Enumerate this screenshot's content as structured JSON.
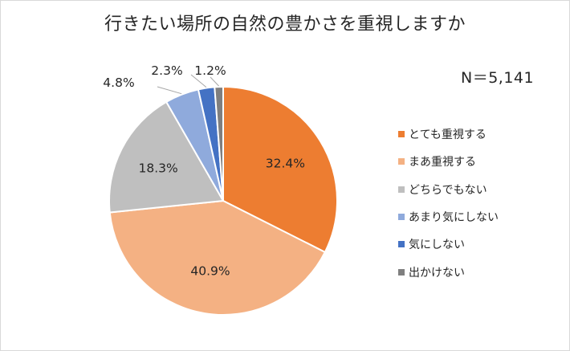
{
  "chart_data": {
    "type": "pie",
    "title": "行きたい場所の自然の豊かさを重視しますか",
    "annotation": "N＝5,141",
    "categories": [
      "とても重視する",
      "まあ重視する",
      "どちらでもない",
      "あまり気にしない",
      "気にしない",
      "出かけない"
    ],
    "values": [
      32.4,
      40.9,
      18.3,
      4.8,
      2.3,
      1.2
    ],
    "value_labels": [
      "32.4%",
      "40.9%",
      "18.3%",
      "4.8%",
      "2.3%",
      "1.2%"
    ],
    "colors": [
      "#ED7D31",
      "#F4B183",
      "#BFBFBF",
      "#8FAADC",
      "#4472C4",
      "#7F7F7F"
    ],
    "start": "12 o'clock, clockwise",
    "legend": "right"
  }
}
